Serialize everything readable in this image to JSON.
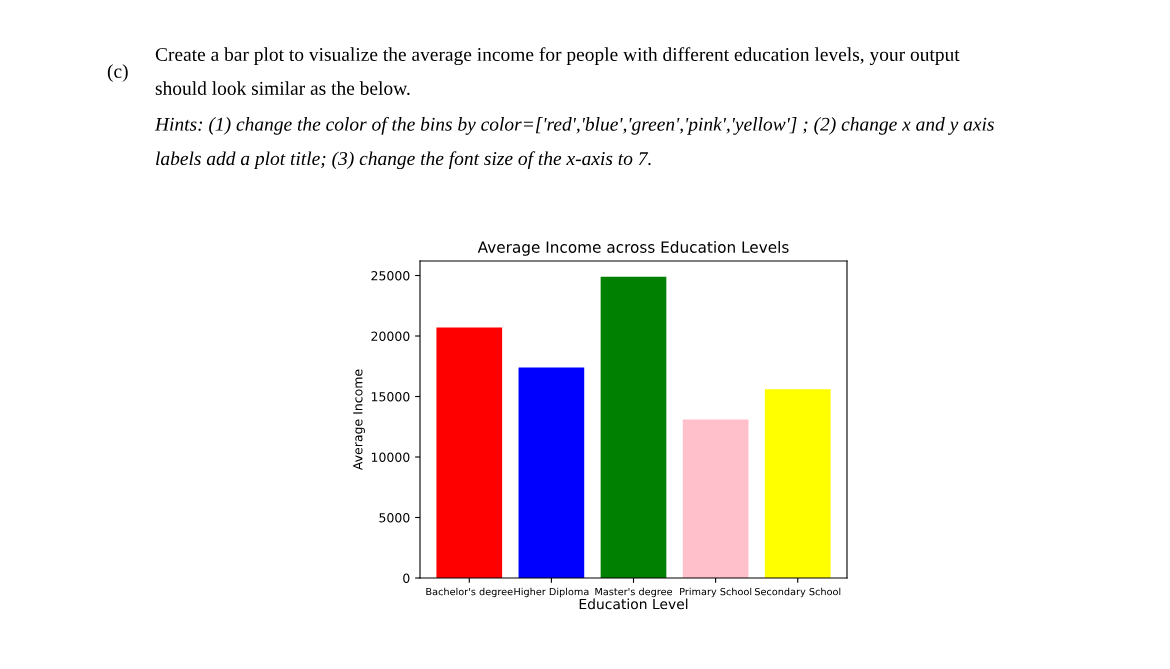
{
  "chart_data": {
    "type": "bar",
    "title": "Average Income across Education Levels",
    "xlabel": "Education Level",
    "ylabel": "Average Income",
    "categories": [
      "Bachelor's degree",
      "Higher Diploma",
      "Master's degree",
      "Primary School",
      "Secondary School"
    ],
    "values": [
      20700,
      17400,
      24900,
      13100,
      15600
    ],
    "colors": [
      "#ff0000",
      "#0000ff",
      "#008000",
      "#ffc0cb",
      "#ffff00"
    ],
    "ylim": [
      0,
      26200
    ],
    "yticks": [
      0,
      5000,
      10000,
      15000,
      20000,
      25000
    ],
    "grid": false,
    "legend": false,
    "annotations": [
      "(c)",
      "Create a bar plot to visualize the average income for people with different education levels, your output\nshould look similar as the below.",
      "Hints: (1) change the color of the bins by color=['red','blue','green','pink','yellow'] ; (2) change x and y axis\nlabels add a plot title; (3) change the font size of the x-axis to 7."
    ]
  }
}
